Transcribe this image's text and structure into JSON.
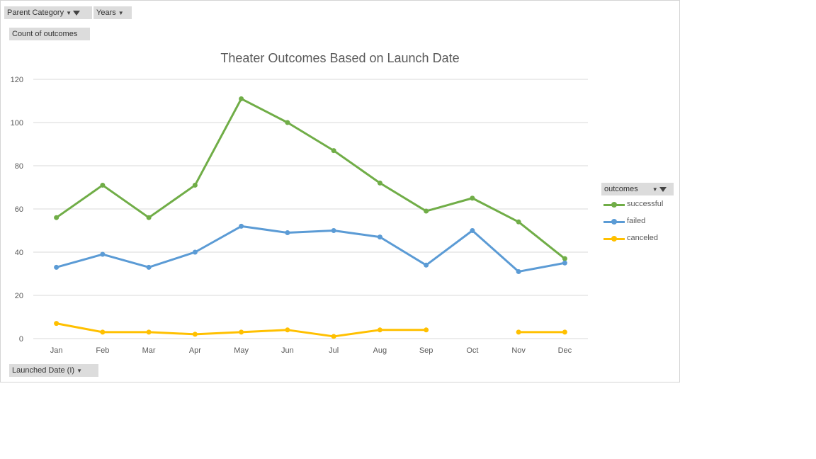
{
  "filters": {
    "parent_category": "Parent Category",
    "years": "Years"
  },
  "values_button": "Count of outcomes",
  "axis_button": "Launched Date (I)",
  "legend_header": "outcomes",
  "colors": {
    "successful": "#70ad47",
    "failed": "#5b9bd5",
    "canceled": "#ffc000",
    "grid": "#d9d9d9",
    "text": "#595959"
  },
  "chart_data": {
    "type": "line",
    "title": "Theater Outcomes Based on Launch Date",
    "xlabel": "",
    "ylabel": "",
    "categories": [
      "Jan",
      "Feb",
      "Mar",
      "Apr",
      "May",
      "Jun",
      "Jul",
      "Aug",
      "Sep",
      "Oct",
      "Nov",
      "Dec"
    ],
    "ylim": [
      0,
      120
    ],
    "yticks": [
      0,
      20,
      40,
      60,
      80,
      100,
      120
    ],
    "grid": true,
    "legend_position": "right",
    "series": [
      {
        "name": "successful",
        "values": [
          56,
          71,
          56,
          71,
          111,
          100,
          87,
          72,
          59,
          65,
          54,
          37
        ]
      },
      {
        "name": "failed",
        "values": [
          33,
          39,
          33,
          40,
          52,
          49,
          50,
          47,
          34,
          50,
          31,
          35
        ]
      },
      {
        "name": "canceled",
        "values": [
          7,
          3,
          3,
          2,
          3,
          4,
          1,
          4,
          4,
          null,
          3,
          3
        ]
      }
    ]
  }
}
